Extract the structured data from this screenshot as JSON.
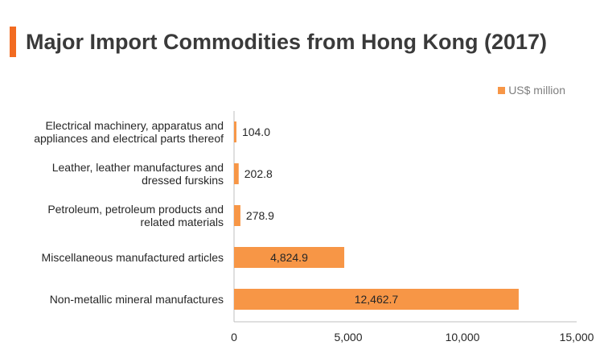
{
  "header": {
    "title": "Major Import Commodities from Hong Kong (2017)",
    "accent_color": "#f26b21"
  },
  "legend": {
    "label": "US$ million"
  },
  "chart_data": {
    "type": "bar",
    "orientation": "horizontal",
    "categories": [
      [
        "Electrical machinery, apparatus and",
        "appliances and electrical parts thereof"
      ],
      [
        "Leather, leather manufactures and",
        "dressed furskins"
      ],
      [
        "Petroleum, petroleum products and",
        "related materials"
      ],
      [
        "Miscellaneous manufactured articles"
      ],
      [
        "Non-metallic mineral manufactures"
      ]
    ],
    "values": [
      104.0,
      202.8,
      278.9,
      4824.9,
      12462.7
    ],
    "value_labels": [
      "104.0",
      "202.8",
      "278.9",
      "4,824.9",
      "12,462.7"
    ],
    "series": [
      {
        "name": "US$ million",
        "color": "#f79646"
      }
    ],
    "xlim": [
      0,
      15000
    ],
    "xticks": [
      0,
      5000,
      10000,
      15000
    ],
    "xtick_labels": [
      "0",
      "5,000",
      "10,000",
      "15,000"
    ],
    "grid": false,
    "legend_position": "top-right"
  }
}
